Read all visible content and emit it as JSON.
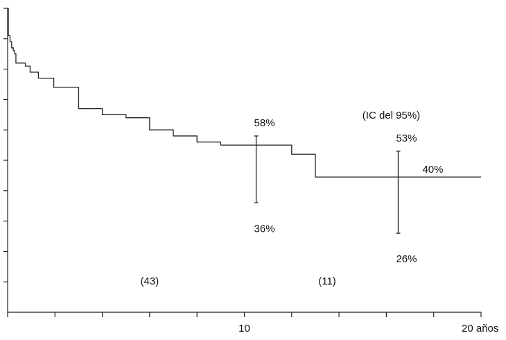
{
  "chart_data": {
    "type": "line",
    "title": "",
    "xlabel": "",
    "ylabel": "",
    "xlim": [
      0,
      20
    ],
    "ylim": [
      0,
      100
    ],
    "x_ticks": [
      0,
      2,
      4,
      6,
      8,
      10,
      12,
      14,
      16,
      18,
      20
    ],
    "x_tick_labels": [
      {
        "x": 10,
        "text": "10"
      },
      {
        "x": 20,
        "text": "20 años"
      }
    ],
    "y_ticks": [
      10,
      20,
      30,
      40,
      50,
      60,
      70,
      80,
      90,
      100
    ],
    "y_tick_labels_shown": false,
    "grid": false,
    "series": [
      {
        "steps": [
          [
            0,
            100
          ],
          [
            0.03,
            91
          ],
          [
            0.1,
            89
          ],
          [
            0.17,
            87
          ],
          [
            0.24,
            86
          ],
          [
            0.3,
            85
          ],
          [
            0.35,
            82
          ],
          [
            0.75,
            81
          ],
          [
            0.95,
            79
          ],
          [
            1.3,
            77
          ],
          [
            1.95,
            74
          ],
          [
            3,
            67
          ],
          [
            4,
            65
          ],
          [
            5,
            64
          ],
          [
            6,
            60
          ],
          [
            7,
            58
          ],
          [
            8,
            56
          ],
          [
            9,
            55
          ],
          [
            12,
            52
          ],
          [
            13,
            44.5
          ],
          [
            20,
            44.5
          ]
        ]
      }
    ],
    "confidence_intervals": [
      {
        "x": 10.5,
        "y": 47,
        "low": 36,
        "high": 58,
        "low_label": "36%",
        "high_label": "58%"
      },
      {
        "x": 16.5,
        "y": 40,
        "low": 26,
        "high": 53,
        "low_label": "26%",
        "high_label": "53%",
        "estimate_label": "40%"
      }
    ],
    "annotations": {
      "ci_note": "(IC del 95%)",
      "n_at_risk": [
        {
          "x": 6,
          "text": "(43)"
        },
        {
          "x": 13.5,
          "text": "(11)"
        }
      ]
    }
  }
}
